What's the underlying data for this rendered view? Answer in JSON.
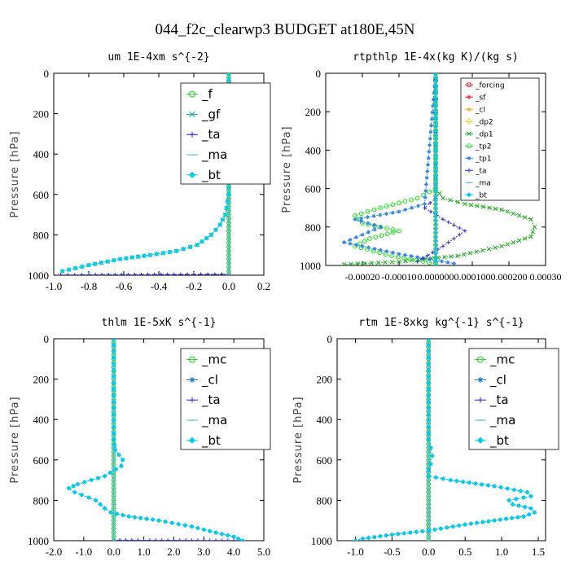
{
  "figure_title": "044_f2c_clearwp3  BUDGET at180E,45N",
  "chart_data": [
    {
      "type": "line",
      "title": "um  1E-4xm s^{-2}",
      "ylabel": "Pressure [hPa]",
      "xlabel": "",
      "xlim": [
        -1.0,
        0.2
      ],
      "ylim": [
        1000,
        0
      ],
      "xticks": [
        "-1.0",
        "-0.8",
        "-0.6",
        "-0.4",
        "-0.2",
        "0.0",
        "0.2"
      ],
      "xtick_values": [
        -1.0,
        -0.8,
        -0.6,
        -0.4,
        -0.2,
        0.0,
        0.2
      ],
      "yticks": [
        "0",
        "200",
        "400",
        "600",
        "800",
        "1000"
      ],
      "ytick_values": [
        0,
        200,
        400,
        600,
        800,
        1000
      ],
      "legend": [
        "_f",
        "_gf",
        "_ta",
        "_ma",
        "_bt"
      ],
      "series": [
        {
          "name": "_f",
          "color": "#22cc22",
          "marker": "circle",
          "x": [
            0.0,
            0.0
          ],
          "y": [
            0,
            1000
          ]
        },
        {
          "name": "_gf",
          "color": "#11aa99",
          "marker": "x",
          "x": [
            0.0,
            0.0,
            0.0,
            0.0,
            0.0,
            0.0,
            0.0,
            -0.02,
            -0.05,
            -0.1,
            -0.18,
            -0.3,
            -0.45,
            -0.62,
            -0.8,
            -0.95
          ],
          "y": [
            0,
            100,
            200,
            300,
            400,
            500,
            600,
            700,
            750,
            800,
            850,
            880,
            900,
            920,
            950,
            980
          ]
        },
        {
          "name": "_ta",
          "color": "#2222cc",
          "marker": "plus",
          "x": [
            0.0,
            -0.2,
            -0.5,
            -0.8,
            -1.0
          ],
          "y": [
            995,
            996,
            997,
            998,
            999
          ]
        },
        {
          "name": "_ma",
          "color": "#55bbcc",
          "marker": "dash",
          "x": [
            0.0,
            0.0
          ],
          "y": [
            0,
            1000
          ]
        },
        {
          "name": "_bt",
          "color": "#00ccee",
          "marker": "diamond",
          "x": [
            0.0,
            0.0,
            0.0,
            0.0,
            0.0,
            0.0,
            0.0,
            -0.02,
            -0.05,
            -0.1,
            -0.18,
            -0.3,
            -0.45,
            -0.62,
            -0.8,
            -0.95
          ],
          "y": [
            0,
            100,
            200,
            300,
            400,
            500,
            600,
            700,
            750,
            800,
            850,
            880,
            900,
            920,
            950,
            980
          ]
        }
      ]
    },
    {
      "type": "line",
      "title": "rtpthlp  1E-4x(kg K)/(kg s)",
      "ylabel": "Pressure [hPa]",
      "xlabel": "",
      "xlim": [
        -0.0003,
        0.0003
      ],
      "ylim": [
        1000,
        0
      ],
      "xticks": [
        "-0.00020",
        "-0.00010",
        "0.000000",
        "0.000100",
        "0.000200",
        "0.00030"
      ],
      "xtick_values": [
        -0.0002,
        -0.0001,
        0.0,
        0.0001,
        0.0002,
        0.0003
      ],
      "yticks": [
        "0",
        "200",
        "400",
        "600",
        "800",
        "1000"
      ],
      "ytick_values": [
        0,
        200,
        400,
        600,
        800,
        1000
      ],
      "legend": [
        "_forcing",
        "_sf",
        "_cl",
        "_dp2",
        "_dp1",
        "_tp2",
        "_tp1",
        "_ta",
        "_ma",
        "_bt"
      ],
      "series": [
        {
          "name": "_forcing",
          "color": "#dd2222",
          "marker": "circle",
          "x": [
            0.0,
            0.0
          ],
          "y": [
            0,
            1000
          ]
        },
        {
          "name": "_sf",
          "color": "#ff3333",
          "marker": "asterisk",
          "x": [
            0.0,
            0.0
          ],
          "y": [
            0,
            1000
          ]
        },
        {
          "name": "_cl",
          "color": "#ffaa22",
          "marker": "star",
          "x": [
            0.0,
            0.0
          ],
          "y": [
            0,
            1000
          ]
        },
        {
          "name": "_dp2",
          "color": "#ffcc22",
          "marker": "circle",
          "x": [
            0.0,
            0.0
          ],
          "y": [
            0,
            1000
          ]
        },
        {
          "name": "_dp1",
          "color": "#22aa22",
          "marker": "x",
          "x": [
            0.0,
            0.0,
            2e-05,
            8e-05,
            0.00018,
            0.00026,
            0.00027,
            0.00026,
            0.00018,
            6e-05,
            -0.0001,
            -0.00025
          ],
          "y": [
            0,
            600,
            650,
            680,
            710,
            760,
            800,
            850,
            900,
            950,
            980,
            995
          ]
        },
        {
          "name": "_tp2",
          "color": "#33dd33",
          "marker": "circle",
          "x": [
            0.0,
            0.0,
            -5e-05,
            -0.00015,
            -0.00022,
            -0.0002,
            -0.0001,
            -0.00018,
            -0.00022,
            -0.00012,
            0.0
          ],
          "y": [
            0,
            600,
            650,
            700,
            740,
            780,
            820,
            860,
            900,
            950,
            990
          ]
        },
        {
          "name": "_tp1",
          "color": "#3388dd",
          "marker": "asterisk",
          "x": [
            0.0,
            -3e-05,
            -0.0001,
            -0.00022,
            -0.00015,
            -0.0002,
            -0.00025,
            -0.0001,
            5e-05
          ],
          "y": [
            0,
            680,
            720,
            760,
            800,
            840,
            880,
            940,
            990
          ]
        },
        {
          "name": "_ta",
          "color": "#3333cc",
          "marker": "plus",
          "x": [
            0.0,
            0.0,
            -3e-05,
            2e-05,
            8e-05,
            2e-05,
            -5e-05
          ],
          "y": [
            0,
            650,
            700,
            760,
            820,
            900,
            980
          ]
        },
        {
          "name": "_ma",
          "color": "#55bbcc",
          "marker": "dash",
          "x": [
            0.0,
            0.0
          ],
          "y": [
            0,
            1000
          ]
        },
        {
          "name": "_bt",
          "color": "#00ccee",
          "marker": "diamond",
          "x": [
            0.0,
            0.0
          ],
          "y": [
            0,
            1000
          ]
        }
      ]
    },
    {
      "type": "line",
      "title": "thlm  1E-5xK s^{-1}",
      "ylabel": "Pressure [hPa]",
      "xlabel": "",
      "xlim": [
        -2.0,
        5.0
      ],
      "ylim": [
        1000,
        0
      ],
      "xticks": [
        "-2.0",
        "-1.0",
        "0.0",
        "1.0",
        "2.0",
        "3.0",
        "4.0",
        "5.0"
      ],
      "xtick_values": [
        -2.0,
        -1.0,
        0.0,
        1.0,
        2.0,
        3.0,
        4.0,
        5.0
      ],
      "yticks": [
        "0",
        "200",
        "400",
        "600",
        "800",
        "1000"
      ],
      "ytick_values": [
        0,
        200,
        400,
        600,
        800,
        1000
      ],
      "legend": [
        "_mc",
        "_cl",
        "_ta",
        "_ma",
        "_bt"
      ],
      "series": [
        {
          "name": "_mc",
          "color": "#22cc22",
          "marker": "circle",
          "x": [
            0.0,
            0.0
          ],
          "y": [
            0,
            1000
          ]
        },
        {
          "name": "_cl",
          "color": "#1177cc",
          "marker": "asterisk",
          "x": [
            0.0,
            0.0,
            0.05,
            0.3,
            0.25,
            -0.3,
            -1.2,
            -1.5,
            -1.3,
            -0.6,
            -0.3,
            -0.1,
            0.5,
            1.5,
            2.6,
            3.4,
            4.0,
            4.3
          ],
          "y": [
            0,
            500,
            550,
            600,
            630,
            680,
            720,
            740,
            760,
            800,
            840,
            860,
            880,
            900,
            930,
            960,
            980,
            1000
          ]
        },
        {
          "name": "_ta",
          "color": "#3333cc",
          "marker": "plus",
          "x": [
            0.0,
            1.0,
            2.0,
            3.0,
            4.0
          ],
          "y": [
            997,
            998,
            998,
            999,
            999
          ]
        },
        {
          "name": "_ma",
          "color": "#55bbcc",
          "marker": "dash",
          "x": [
            0.0,
            0.0
          ],
          "y": [
            0,
            1000
          ]
        },
        {
          "name": "_bt",
          "color": "#00ccee",
          "marker": "diamond",
          "x": [
            0.0,
            0.0,
            0.05,
            0.3,
            0.25,
            -0.3,
            -1.2,
            -1.5,
            -1.3,
            -0.6,
            -0.3,
            -0.1,
            0.5,
            1.5,
            2.6,
            3.4,
            4.0,
            4.3
          ],
          "y": [
            0,
            500,
            550,
            600,
            630,
            680,
            720,
            740,
            760,
            800,
            840,
            860,
            880,
            900,
            930,
            960,
            980,
            1000
          ]
        }
      ]
    },
    {
      "type": "line",
      "title": "rtm  1E-8xkg kg^{-1} s^{-1}",
      "ylabel": "Pressure [hPa]",
      "xlabel": "",
      "xlim": [
        -1.25,
        1.6
      ],
      "ylim": [
        1000,
        0
      ],
      "xticks": [
        "-1.0",
        "-0.5",
        "0.0",
        "0.5",
        "1.0",
        "1.5"
      ],
      "xtick_values": [
        -1.0,
        -0.5,
        0.0,
        0.5,
        1.0,
        1.5
      ],
      "yticks": [
        "0",
        "200",
        "400",
        "600",
        "800",
        "1000"
      ],
      "ytick_values": [
        0,
        200,
        400,
        600,
        800,
        1000
      ],
      "legend": [
        "_mc",
        "_cl",
        "_ta",
        "_ma",
        "_bt"
      ],
      "series": [
        {
          "name": "_mc",
          "color": "#22cc22",
          "marker": "circle",
          "x": [
            0.0,
            0.0
          ],
          "y": [
            0,
            1000
          ]
        },
        {
          "name": "_cl",
          "color": "#1177cc",
          "marker": "asterisk",
          "x": [
            0.0,
            0.0,
            0.03,
            0.05,
            0.03,
            0.0,
            0.0,
            0.3,
            0.9,
            1.35,
            1.4,
            1.1,
            1.15,
            1.4,
            1.45,
            1.3,
            0.9,
            0.5,
            0.0,
            -0.5,
            -0.9,
            -1.0
          ],
          "y": [
            0,
            500,
            540,
            580,
            620,
            650,
            680,
            700,
            730,
            760,
            780,
            800,
            820,
            840,
            860,
            880,
            900,
            920,
            950,
            970,
            990,
            1000
          ]
        },
        {
          "name": "_ta",
          "color": "#3333cc",
          "marker": "plus",
          "x": [
            0.0,
            0.0
          ],
          "y": [
            0,
            1000
          ]
        },
        {
          "name": "_ma",
          "color": "#55bbcc",
          "marker": "dash",
          "x": [
            0.0,
            0.0
          ],
          "y": [
            0,
            1000
          ]
        },
        {
          "name": "_bt",
          "color": "#00ccee",
          "marker": "diamond",
          "x": [
            0.0,
            0.0,
            0.03,
            0.05,
            0.03,
            0.0,
            0.0,
            0.3,
            0.9,
            1.35,
            1.4,
            1.1,
            1.15,
            1.4,
            1.45,
            1.3,
            0.9,
            0.5,
            0.0,
            -0.5,
            -0.9,
            -1.0
          ],
          "y": [
            0,
            500,
            540,
            580,
            620,
            650,
            680,
            700,
            730,
            760,
            780,
            800,
            820,
            840,
            860,
            880,
            900,
            920,
            950,
            970,
            990,
            1000
          ]
        }
      ]
    }
  ]
}
